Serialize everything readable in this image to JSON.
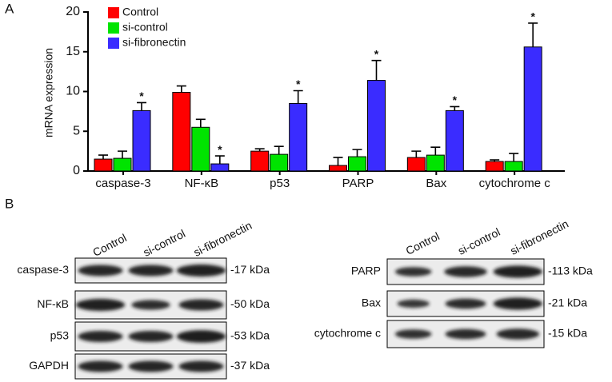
{
  "panel_a_label": "A",
  "chart_data": {
    "type": "bar",
    "ylabel": "mRNA expression",
    "categories": [
      "caspase-3",
      "NF-κB",
      "p53",
      "PARP",
      "Bax",
      "cytochrome c"
    ],
    "ylim": [
      0,
      20
    ],
    "yticks": [
      0,
      5,
      10,
      15,
      20
    ],
    "legend": "top-left",
    "series": [
      {
        "name": "Control",
        "color": "#ff0000",
        "values": [
          1.5,
          9.9,
          2.5,
          0.7,
          1.7,
          1.2
        ],
        "errors": [
          0.5,
          0.8,
          0.3,
          1.0,
          0.8,
          0.2
        ]
      },
      {
        "name": "si-control",
        "color": "#00e400",
        "values": [
          1.6,
          5.5,
          2.1,
          1.8,
          2.0,
          1.2
        ],
        "errors": [
          0.9,
          1.0,
          1.0,
          0.9,
          1.0,
          1.0
        ]
      },
      {
        "name": "si-fibronectin",
        "color": "#3a2cff",
        "values": [
          7.6,
          0.9,
          8.5,
          11.4,
          7.6,
          15.6
        ],
        "errors": [
          1.0,
          1.0,
          1.6,
          2.5,
          0.5,
          3.0
        ],
        "significance": [
          "*",
          "*",
          "*",
          "*",
          "*",
          "*"
        ]
      }
    ]
  },
  "panel_b_label": "B",
  "blots": [
    {
      "lanes": [
        "Control",
        "si-control",
        "si-fibronectin"
      ],
      "rows": [
        {
          "protein": "caspase-3",
          "size": "-17 kDa"
        },
        {
          "protein": "NF-κB",
          "size": "-50 kDa"
        },
        {
          "protein": "p53",
          "size": "-53 kDa"
        },
        {
          "protein": "GAPDH",
          "size": "-37 kDa"
        }
      ]
    },
    {
      "lanes": [
        "Control",
        "si-control",
        "si-fibronectin"
      ],
      "rows": [
        {
          "protein": "PARP",
          "size": "-113 kDa"
        },
        {
          "protein": "Bax",
          "size": "-21 kDa"
        },
        {
          "protein": "cytochrome c",
          "size": "-15 kDa"
        }
      ]
    }
  ]
}
